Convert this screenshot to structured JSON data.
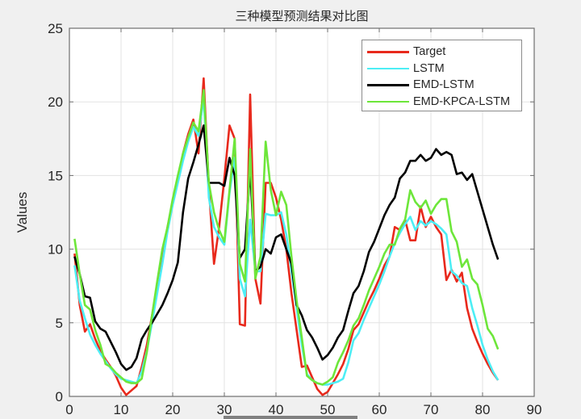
{
  "chart_data": {
    "type": "line",
    "title": "三种模型预测结果对比图",
    "xlabel": "",
    "ylabel": "Values",
    "xlim": [
      0,
      90
    ],
    "ylim": [
      0,
      25
    ],
    "xticks": [
      0,
      10,
      20,
      30,
      40,
      50,
      60,
      70,
      80,
      90
    ],
    "yticks": [
      0,
      5,
      10,
      15,
      20,
      25
    ],
    "grid": true,
    "legend_position": "northeast",
    "x": [
      1,
      2,
      3,
      4,
      5,
      6,
      7,
      8,
      9,
      10,
      11,
      12,
      13,
      14,
      15,
      16,
      17,
      18,
      19,
      20,
      21,
      22,
      23,
      24,
      25,
      26,
      27,
      28,
      29,
      30,
      31,
      32,
      33,
      34,
      35,
      36,
      37,
      38,
      39,
      40,
      41,
      42,
      43,
      44,
      45,
      46,
      47,
      48,
      49,
      50,
      51,
      52,
      53,
      54,
      55,
      56,
      57,
      58,
      59,
      60,
      61,
      62,
      63,
      64,
      65,
      66,
      67,
      68,
      69,
      70,
      71,
      72,
      73,
      74,
      75,
      76,
      77,
      78,
      79,
      80,
      81,
      82,
      83
    ],
    "series": [
      {
        "name": "Target",
        "color": "#e8291c",
        "values": [
          9.7,
          6.2,
          4.4,
          4.9,
          3.9,
          3.1,
          2.5,
          2.0,
          1.4,
          0.6,
          0.1,
          0.4,
          0.7,
          2.0,
          3.5,
          5.5,
          7.5,
          9.5,
          11.5,
          13.2,
          14.8,
          16.5,
          17.8,
          18.8,
          16.5,
          21.6,
          14.2,
          9.0,
          11.5,
          14.8,
          18.4,
          17.5,
          4.9,
          4.8,
          20.5,
          8.0,
          6.3,
          14.5,
          14.5,
          13.5,
          12.0,
          10.0,
          7.0,
          4.5,
          2.0,
          2.1,
          1.3,
          0.5,
          0.1,
          0.3,
          0.9,
          1.5,
          2.2,
          3.2,
          4.5,
          4.9,
          5.7,
          6.5,
          7.2,
          8.0,
          8.9,
          9.5,
          11.5,
          11.3,
          12.0,
          10.6,
          10.6,
          12.9,
          11.5,
          12.2,
          11.5,
          11.0,
          7.9,
          8.6,
          7.8,
          8.4,
          6.0,
          4.6,
          3.7,
          2.9,
          2.2,
          1.6,
          1.1
        ]
      },
      {
        "name": "LSTM",
        "color": "#4deef5",
        "values": [
          8.9,
          6.5,
          5.3,
          4.2,
          3.5,
          2.9,
          2.4,
          1.9,
          1.5,
          1.2,
          1.1,
          1.0,
          0.9,
          1.7,
          3.1,
          5.0,
          7.0,
          9.0,
          11.2,
          13.0,
          14.5,
          16.0,
          17.3,
          18.3,
          17.7,
          20.3,
          13.5,
          11.5,
          10.8,
          10.3,
          13.8,
          16.2,
          8.0,
          6.8,
          12.0,
          8.5,
          8.5,
          12.4,
          12.3,
          12.3,
          12.5,
          11.0,
          8.5,
          6.0,
          3.5,
          1.5,
          1.1,
          0.9,
          0.8,
          0.8,
          0.9,
          1.0,
          1.2,
          2.3,
          3.8,
          4.3,
          5.2,
          6.0,
          6.8,
          7.6,
          8.5,
          9.5,
          10.4,
          11.1,
          11.7,
          12.2,
          11.3,
          11.9,
          11.6,
          11.9,
          11.7,
          11.4,
          11.0,
          8.5,
          8.2,
          7.7,
          7.5,
          6.0,
          4.8,
          3.5,
          2.5,
          1.7,
          1.1
        ]
      },
      {
        "name": "EMD-LSTM",
        "color": "#000000",
        "values": [
          9.5,
          8.3,
          6.8,
          6.7,
          5.1,
          4.6,
          4.4,
          3.7,
          3.0,
          2.2,
          1.8,
          2.0,
          2.6,
          3.9,
          4.5,
          5.0,
          5.6,
          6.2,
          7.0,
          7.9,
          9.1,
          12.5,
          14.8,
          15.9,
          17.1,
          18.4,
          14.5,
          14.5,
          14.5,
          14.3,
          16.2,
          15.0,
          9.4,
          10.0,
          15.5,
          8.5,
          8.8,
          10.0,
          9.7,
          10.8,
          11.0,
          10.0,
          9.0,
          6.2,
          5.5,
          4.5,
          4.0,
          3.3,
          2.5,
          2.8,
          3.3,
          4.0,
          4.5,
          5.8,
          7.0,
          7.5,
          8.5,
          9.8,
          10.5,
          11.4,
          12.3,
          13.0,
          13.5,
          14.8,
          15.2,
          16.0,
          16.0,
          16.4,
          16.0,
          16.2,
          16.8,
          16.4,
          16.6,
          16.4,
          15.1,
          15.2,
          14.7,
          15.1,
          13.9,
          12.7,
          11.5,
          10.3,
          9.3
        ]
      },
      {
        "name": "EMD-KPCA-LSTM",
        "color": "#6de63a",
        "values": [
          10.7,
          8.3,
          6.2,
          5.9,
          4.5,
          3.5,
          2.2,
          2.0,
          1.6,
          1.3,
          1.0,
          0.9,
          0.9,
          1.2,
          3.0,
          5.5,
          7.8,
          10.0,
          11.5,
          13.4,
          15.0,
          16.5,
          17.6,
          18.6,
          18.0,
          20.8,
          14.5,
          12.5,
          11.3,
          10.5,
          14.0,
          17.5,
          9.0,
          7.8,
          16.8,
          8.0,
          9.5,
          17.3,
          14.0,
          12.3,
          13.9,
          13.0,
          9.5,
          6.5,
          4.0,
          1.4,
          1.1,
          0.9,
          0.8,
          1.0,
          1.3,
          2.3,
          3.0,
          3.8,
          4.8,
          5.3,
          6.2,
          7.2,
          8.0,
          8.8,
          9.7,
          10.3,
          10.3,
          11.4,
          12.0,
          14.0,
          13.2,
          12.8,
          13.3,
          12.4,
          13.0,
          13.4,
          13.4,
          11.2,
          10.5,
          8.8,
          9.3,
          8.0,
          7.6,
          6.2,
          4.6,
          4.1,
          3.2
        ]
      }
    ]
  },
  "ui": {
    "title": "三种模型预测结果对比图",
    "ylabel": "Values",
    "legend": [
      {
        "label": "Target",
        "color": "#e8291c"
      },
      {
        "label": "LSTM",
        "color": "#4deef5"
      },
      {
        "label": "EMD-LSTM",
        "color": "#000000"
      },
      {
        "label": "EMD-KPCA-LSTM",
        "color": "#6de63a"
      }
    ]
  }
}
